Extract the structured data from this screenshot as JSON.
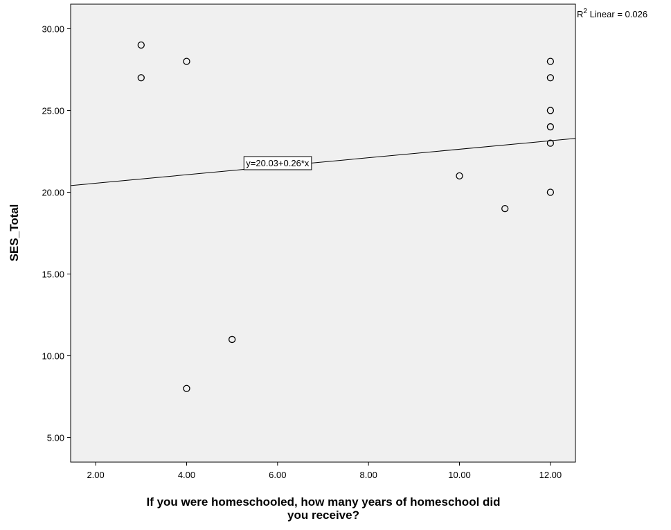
{
  "chart_data": {
    "type": "scatter",
    "title": "",
    "xlabel_lines": [
      "If you were homeschooled, how many years of homeschool did",
      "you receive?"
    ],
    "ylabel": "SES_Total",
    "xlim": [
      1.45,
      12.55
    ],
    "ylim": [
      3.5,
      31.5
    ],
    "x_ticks": [
      2,
      4,
      6,
      8,
      10,
      12
    ],
    "x_tick_labels": [
      "2.00",
      "4.00",
      "6.00",
      "8.00",
      "10.00",
      "12.00"
    ],
    "y_ticks": [
      5,
      10,
      15,
      20,
      25,
      30
    ],
    "y_tick_labels": [
      "5.00",
      "10.00",
      "15.00",
      "20.00",
      "25.00",
      "30.00"
    ],
    "points": [
      {
        "x": 3,
        "y": 29
      },
      {
        "x": 3,
        "y": 27
      },
      {
        "x": 4,
        "y": 28
      },
      {
        "x": 4,
        "y": 8
      },
      {
        "x": 5,
        "y": 11
      },
      {
        "x": 10,
        "y": 21
      },
      {
        "x": 11,
        "y": 19
      },
      {
        "x": 12,
        "y": 28
      },
      {
        "x": 12,
        "y": 27
      },
      {
        "x": 12,
        "y": 25
      },
      {
        "x": 12,
        "y": 24
      },
      {
        "x": 12,
        "y": 23
      },
      {
        "x": 12,
        "y": 20
      }
    ],
    "fit_line": {
      "intercept": 20.03,
      "slope": 0.26,
      "equation_label": "y=20.03+0.26*x",
      "label_x": 6.0,
      "label_y": 21.8
    },
    "r2_label": {
      "prefix": "R",
      "superscript": "2",
      "text": " Linear = 0.026"
    },
    "grid": false,
    "legend": "none",
    "colors": {
      "plot_background": "#f0f0f0",
      "marker_stroke": "#000000",
      "line": "#000000"
    }
  }
}
